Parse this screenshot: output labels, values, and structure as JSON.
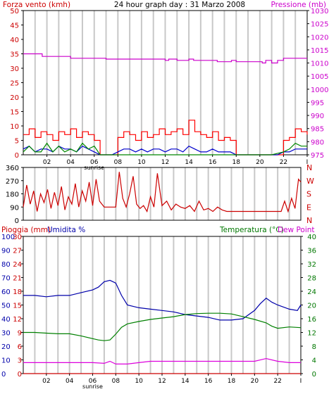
{
  "colors": {
    "background": "#ffffff",
    "frame": "#000000",
    "grid": "#c8c8c8",
    "wind_max": "#ff0000",
    "wind_avg": "#0000cc",
    "wind_gust2": "#008800",
    "pressure": "#cc00cc",
    "direction": "#cc0000",
    "humidity": "#0000aa",
    "temperature": "#008000",
    "dew_point": "#dd00dd",
    "rain": "#cc0000",
    "title": "#000000",
    "label_red": "#cc0000",
    "label_blue": "#0000aa",
    "label_green": "#007700",
    "label_magenta": "#cc00cc"
  },
  "header": {
    "left_label": "Forza vento (kmh)",
    "title": "24 hour graph day : 31 Marzo 2008",
    "right_label": "Pressione (mb)"
  },
  "middle": {
    "compass_letters": [
      "N",
      "W",
      "S",
      "E",
      "N"
    ]
  },
  "bottom": {
    "left_label_1": "Pioggia (mm)",
    "left_label_2": "Umidita %",
    "right_label_1": "Temperatura (°C)",
    "right_label_2": "Dew Point"
  },
  "x_axis": {
    "ticks": [
      "02",
      "04",
      "06",
      "08",
      "10",
      "12",
      "14",
      "16",
      "18",
      "20",
      "22",
      "I"
    ],
    "sunrise_label": "sunrise"
  },
  "chart_data": [
    {
      "name": "wind_pressure",
      "type": "line",
      "xlim": [
        0,
        24
      ],
      "left_axis": {
        "label": "Forza vento (kmh)",
        "ylim": [
          0,
          50
        ],
        "ticks": [
          0,
          5,
          10,
          15,
          20,
          25,
          30,
          35,
          40,
          45,
          50
        ]
      },
      "right_axis": {
        "label": "Pressione (mb)",
        "ylim": [
          975,
          1030
        ],
        "ticks": [
          975,
          980,
          985,
          990,
          995,
          1000,
          1005,
          1010,
          1015,
          1020,
          1025,
          1030
        ]
      },
      "series": [
        {
          "axis": "right",
          "color": "#cc00cc",
          "style": "step",
          "x": [
            0,
            1,
            1.6,
            3,
            4,
            6,
            7,
            7.4,
            9,
            10,
            11,
            12,
            12.3,
            13,
            14,
            14.4,
            16,
            16.4,
            17,
            17.6,
            18,
            20.2,
            20.5,
            21,
            21.5,
            22,
            23,
            24
          ],
          "y": [
            1013.5,
            1013.5,
            1012.5,
            1012.5,
            1011.8,
            1011.8,
            1011.5,
            1011.5,
            1011.5,
            1011.5,
            1011.5,
            1011.0,
            1011.5,
            1011.0,
            1011.5,
            1011.0,
            1011.0,
            1010.5,
            1010.5,
            1011.0,
            1010.5,
            1010.0,
            1011.0,
            1010.0,
            1011.0,
            1011.8,
            1011.8,
            1011.8
          ]
        },
        {
          "axis": "left",
          "color": "#ff0000",
          "style": "step",
          "x": [
            0,
            0.5,
            1,
            1.5,
            2,
            2.5,
            3,
            3.5,
            4,
            4.5,
            5,
            5.5,
            6,
            6.5,
            7,
            7.5,
            8,
            8.5,
            9,
            9.5,
            10,
            10.5,
            11,
            11.5,
            12,
            12.5,
            13,
            13.5,
            14,
            14.5,
            15,
            15.5,
            16,
            16.5,
            17,
            17.5,
            18,
            18.5,
            19,
            19.5,
            20,
            20.5,
            21,
            21.5,
            22,
            22.5,
            23,
            23.5,
            24
          ],
          "y": [
            7,
            9,
            6,
            8,
            7,
            5,
            8,
            7,
            9,
            6,
            8,
            7,
            5,
            0,
            0,
            0,
            6,
            8,
            7,
            5,
            8,
            6,
            7,
            9,
            7,
            8,
            9,
            7,
            12,
            8,
            7,
            6,
            8,
            5,
            6,
            5,
            0,
            0,
            0,
            0,
            0,
            0,
            0,
            0,
            5,
            6,
            9,
            8,
            7
          ]
        },
        {
          "axis": "left",
          "color": "#0000cc",
          "style": "line",
          "x": [
            0,
            0.5,
            1,
            1.5,
            2,
            2.5,
            3,
            3.5,
            4,
            4.5,
            5,
            5.5,
            6,
            6.5,
            7,
            7.5,
            8,
            8.5,
            9,
            9.5,
            10,
            10.5,
            11,
            11.5,
            12,
            12.5,
            13,
            13.5,
            14,
            14.5,
            15,
            15.5,
            16,
            16.5,
            17,
            17.5,
            18,
            18.5,
            19,
            19.5,
            20,
            20.5,
            21,
            21.5,
            22,
            22.5,
            23,
            23.5,
            24
          ],
          "y": [
            2,
            3,
            1,
            2,
            2,
            1,
            3,
            2,
            2,
            1,
            3,
            2,
            1,
            0,
            0,
            0,
            1,
            2,
            2,
            1,
            2,
            1,
            2,
            2,
            1,
            2,
            2,
            1,
            3,
            2,
            1,
            1,
            2,
            1,
            1,
            1,
            0,
            0,
            0,
            0,
            0,
            0,
            0,
            0,
            1,
            1,
            2,
            2,
            2
          ]
        },
        {
          "axis": "left",
          "color": "#008800",
          "style": "line",
          "x": [
            0,
            0.5,
            1,
            1.5,
            2,
            2.5,
            3,
            3.5,
            4,
            4.5,
            5,
            5.5,
            6,
            6.5,
            7,
            8,
            10,
            12,
            14,
            16,
            18,
            20,
            21,
            22,
            22.5,
            23,
            23.5,
            24
          ],
          "y": [
            1,
            3,
            1,
            1,
            4,
            1,
            3,
            1,
            2,
            1,
            4,
            2,
            3,
            0,
            0,
            0,
            0,
            0,
            0,
            0,
            0,
            0,
            0,
            1,
            2,
            4,
            3,
            3
          ]
        }
      ]
    },
    {
      "name": "wind_direction",
      "type": "line",
      "xlim": [
        0,
        24
      ],
      "ylim": [
        0,
        360
      ],
      "ticks": [
        0,
        90,
        180,
        270,
        360
      ],
      "right_labels": [
        "N",
        "W",
        "S",
        "E",
        "N"
      ],
      "series": [
        {
          "color": "#cc0000",
          "style": "line",
          "x": [
            0,
            0.3,
            0.6,
            0.9,
            1.2,
            1.5,
            1.8,
            2.1,
            2.4,
            2.7,
            3,
            3.3,
            3.6,
            3.9,
            4.2,
            4.5,
            4.8,
            5.1,
            5.4,
            5.7,
            6,
            6.3,
            6.6,
            7,
            7.5,
            8,
            8.3,
            8.6,
            8.9,
            9.2,
            9.5,
            9.8,
            10.1,
            10.4,
            10.7,
            11,
            11.3,
            11.6,
            12,
            12.4,
            12.8,
            13.2,
            13.6,
            14,
            14.4,
            14.8,
            15.2,
            15.6,
            16,
            16.4,
            16.8,
            17.2,
            17.6,
            18,
            19,
            20,
            21,
            22,
            22.3,
            22.6,
            22.9,
            23.2,
            23.5,
            23.8,
            24
          ],
          "y": [
            90,
            240,
            110,
            200,
            60,
            180,
            120,
            210,
            80,
            190,
            100,
            230,
            70,
            160,
            110,
            250,
            90,
            200,
            130,
            260,
            100,
            280,
            130,
            90,
            90,
            90,
            330,
            150,
            90,
            180,
            300,
            110,
            80,
            100,
            60,
            160,
            90,
            320,
            100,
            130,
            70,
            110,
            90,
            80,
            100,
            60,
            130,
            70,
            80,
            60,
            90,
            70,
            60,
            60,
            60,
            60,
            60,
            60,
            60,
            130,
            60,
            150,
            80,
            280,
            260
          ]
        }
      ]
    },
    {
      "name": "humidity_temperature_rain",
      "type": "line",
      "xlim": [
        0,
        24
      ],
      "left_axis_humidity": {
        "label": "Umidita %",
        "ylim": [
          0,
          100
        ],
        "ticks": [
          0,
          10,
          20,
          30,
          40,
          50,
          60,
          70,
          80,
          90,
          100
        ]
      },
      "left_axis_rain": {
        "label": "Pioggia (mm)",
        "ylim": [
          0,
          30
        ],
        "ticks": [
          0,
          3,
          6,
          9,
          12,
          15,
          18,
          21,
          24,
          27,
          30
        ]
      },
      "right_axis": {
        "label": "Temperatura (°C)",
        "ylim": [
          0,
          40
        ],
        "ticks": [
          0,
          4,
          8,
          12,
          16,
          20,
          24,
          28,
          32,
          36,
          40
        ]
      },
      "series": [
        {
          "axis": "humidity",
          "color": "#0000aa",
          "style": "line",
          "x": [
            0,
            1,
            2,
            3,
            4,
            5,
            6,
            6.5,
            7,
            7.5,
            8,
            8.5,
            9,
            10,
            11,
            12,
            13,
            14,
            15,
            16,
            17,
            18,
            19,
            20,
            20.5,
            21,
            21.5,
            22,
            23,
            23.7,
            24
          ],
          "y": [
            57,
            57,
            56,
            57,
            57,
            59,
            61,
            63,
            67,
            68,
            66,
            57,
            50,
            48,
            47,
            46,
            45,
            43,
            42,
            41,
            39,
            39,
            40,
            46,
            51,
            55,
            52,
            50,
            47,
            46,
            50
          ]
        },
        {
          "axis": "right",
          "color": "#008000",
          "style": "line",
          "x": [
            0,
            1,
            2,
            3,
            4,
            5,
            6,
            6.5,
            7,
            7.5,
            8,
            8.5,
            9,
            10,
            11,
            12,
            13,
            14,
            15,
            16,
            17,
            18,
            19,
            20,
            21,
            21.5,
            22,
            23,
            24
          ],
          "y": [
            12,
            12,
            11.8,
            11.6,
            11.6,
            11,
            10.2,
            9.8,
            9.6,
            9.8,
            11.5,
            13.5,
            14.5,
            15.2,
            15.8,
            16.2,
            16.6,
            17.2,
            17.5,
            17.6,
            17.6,
            17.4,
            16.6,
            15.8,
            14.8,
            13.8,
            13.2,
            13.6,
            13.4
          ]
        },
        {
          "axis": "humidity",
          "color": "#dd00dd",
          "style": "line",
          "x": [
            0,
            1,
            2,
            3,
            4,
            5,
            6,
            7,
            7.5,
            8,
            9,
            10,
            11,
            12,
            13,
            14,
            15,
            16,
            17,
            18,
            19,
            20,
            21,
            22,
            23,
            24
          ],
          "y": [
            8,
            8,
            8,
            8,
            8,
            8,
            8,
            7.5,
            9,
            7,
            7,
            8,
            9,
            9,
            9,
            9,
            9,
            9,
            9,
            9,
            9,
            9,
            11,
            9,
            8,
            8
          ]
        },
        {
          "axis": "rain",
          "color": "#cc0000",
          "style": "line",
          "x": [
            0,
            24
          ],
          "y": [
            0,
            0
          ]
        }
      ]
    }
  ]
}
